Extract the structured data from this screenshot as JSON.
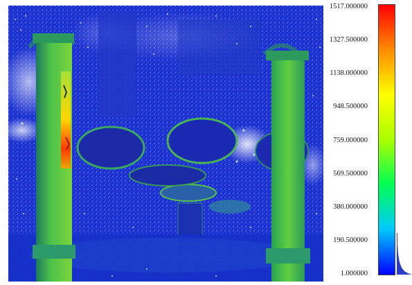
{
  "view": {
    "colors": {
      "low": "#1530d8",
      "mid": "#2ecb3a",
      "high": "#ff2200",
      "background": "#ffffff"
    }
  },
  "scalar_bar": {
    "ticks": [
      {
        "label": "1517.000000",
        "value": 1517.0
      },
      {
        "label": "1327.500000",
        "value": 1327.5
      },
      {
        "label": "1138.000000",
        "value": 1138.0
      },
      {
        "label": "948.500000",
        "value": 948.5
      },
      {
        "label": "759.000000",
        "value": 759.0
      },
      {
        "label": "569.500000",
        "value": 569.5
      },
      {
        "label": "380.000000",
        "value": 380.0
      },
      {
        "label": "190.500000",
        "value": 190.5
      },
      {
        "label": "1.000000",
        "value": 1.0
      }
    ],
    "min": 1.0,
    "max": 1517.0,
    "gradient": [
      "#0000ff",
      "#00c8ff",
      "#00ff55",
      "#aaff00",
      "#ffff00",
      "#ff8c00",
      "#ff0000"
    ]
  }
}
